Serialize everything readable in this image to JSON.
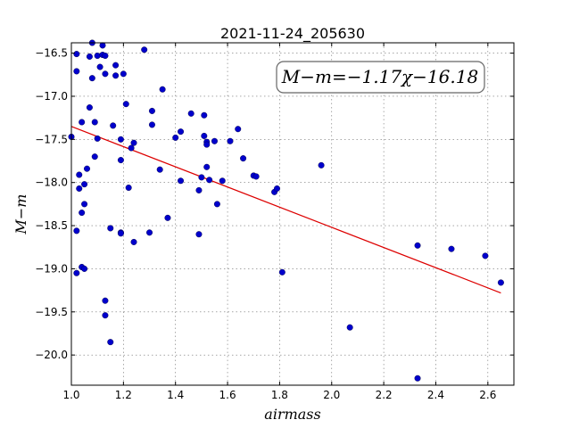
{
  "chart_data": {
    "type": "scatter",
    "title": "2021-11-24_205630",
    "xlabel": "airmass",
    "ylabel": "M−m",
    "xlim": [
      1.0,
      2.7
    ],
    "ylim": [
      -20.35,
      -16.38
    ],
    "xticks": [
      1.0,
      1.2,
      1.4,
      1.6,
      1.8,
      2.0,
      2.2,
      2.4,
      2.6
    ],
    "xtick_labels": [
      "1.0",
      "1.2",
      "1.4",
      "1.6",
      "1.8",
      "2.0",
      "2.2",
      "2.4",
      "2.6"
    ],
    "yticks": [
      -16.5,
      -17.0,
      -17.5,
      -18.0,
      -18.5,
      -19.0,
      -19.5,
      -20.0
    ],
    "ytick_labels": [
      "−16.5",
      "−17.0",
      "−17.5",
      "−18.0",
      "−18.5",
      "−19.0",
      "−19.5",
      "−20.0"
    ],
    "grid": true,
    "annotation": {
      "text": "M−m=−1.17χ−16.18",
      "placement": "top-right"
    },
    "fit_line": {
      "color": "#dd0000",
      "x": [
        1.0,
        2.65
      ],
      "y": [
        -17.35,
        -19.28
      ]
    },
    "series": [
      {
        "color": "#0000cc",
        "points": [
          [
            1.0,
            -17.47
          ],
          [
            1.02,
            -16.51
          ],
          [
            1.02,
            -16.71
          ],
          [
            1.02,
            -18.56
          ],
          [
            1.02,
            -19.05
          ],
          [
            1.03,
            -17.91
          ],
          [
            1.03,
            -18.07
          ],
          [
            1.04,
            -18.98
          ],
          [
            1.04,
            -18.35
          ],
          [
            1.04,
            -17.3
          ],
          [
            1.05,
            -18.02
          ],
          [
            1.05,
            -19.0
          ],
          [
            1.05,
            -18.25
          ],
          [
            1.06,
            -17.84
          ],
          [
            1.07,
            -16.54
          ],
          [
            1.07,
            -17.13
          ],
          [
            1.08,
            -16.79
          ],
          [
            1.08,
            -16.38
          ],
          [
            1.09,
            -17.7
          ],
          [
            1.09,
            -17.3
          ],
          [
            1.1,
            -17.49
          ],
          [
            1.1,
            -16.53
          ],
          [
            1.11,
            -16.66
          ],
          [
            1.12,
            -16.52
          ],
          [
            1.12,
            -16.41
          ],
          [
            1.13,
            -16.74
          ],
          [
            1.13,
            -19.37
          ],
          [
            1.13,
            -19.54
          ],
          [
            1.13,
            -16.53
          ],
          [
            1.15,
            -19.85
          ],
          [
            1.15,
            -18.53
          ],
          [
            1.16,
            -17.34
          ],
          [
            1.17,
            -16.64
          ],
          [
            1.17,
            -16.76
          ],
          [
            1.19,
            -17.5
          ],
          [
            1.19,
            -17.74
          ],
          [
            1.19,
            -18.58
          ],
          [
            1.19,
            -18.59
          ],
          [
            1.2,
            -16.74
          ],
          [
            1.21,
            -17.09
          ],
          [
            1.22,
            -18.06
          ],
          [
            1.23,
            -17.6
          ],
          [
            1.24,
            -18.69
          ],
          [
            1.24,
            -17.54
          ],
          [
            1.28,
            -16.46
          ],
          [
            1.3,
            -18.58
          ],
          [
            1.31,
            -17.33
          ],
          [
            1.31,
            -17.17
          ],
          [
            1.34,
            -17.85
          ],
          [
            1.35,
            -16.92
          ],
          [
            1.37,
            -18.41
          ],
          [
            1.4,
            -17.48
          ],
          [
            1.42,
            -17.41
          ],
          [
            1.42,
            -17.98
          ],
          [
            1.46,
            -17.2
          ],
          [
            1.49,
            -18.6
          ],
          [
            1.49,
            -18.09
          ],
          [
            1.5,
            -17.94
          ],
          [
            1.51,
            -17.22
          ],
          [
            1.51,
            -17.46
          ],
          [
            1.52,
            -17.53
          ],
          [
            1.52,
            -17.56
          ],
          [
            1.52,
            -17.82
          ],
          [
            1.53,
            -17.97
          ],
          [
            1.55,
            -17.52
          ],
          [
            1.56,
            -18.25
          ],
          [
            1.58,
            -17.98
          ],
          [
            1.61,
            -17.52
          ],
          [
            1.64,
            -17.38
          ],
          [
            1.66,
            -17.72
          ],
          [
            1.7,
            -17.92
          ],
          [
            1.71,
            -17.93
          ],
          [
            1.78,
            -18.11
          ],
          [
            1.79,
            -18.07
          ],
          [
            1.81,
            -19.04
          ],
          [
            1.96,
            -17.8
          ],
          [
            2.07,
            -19.68
          ],
          [
            2.33,
            -20.27
          ],
          [
            2.33,
            -18.73
          ],
          [
            2.46,
            -18.77
          ],
          [
            2.59,
            -18.85
          ],
          [
            2.65,
            -19.16
          ]
        ]
      }
    ]
  }
}
